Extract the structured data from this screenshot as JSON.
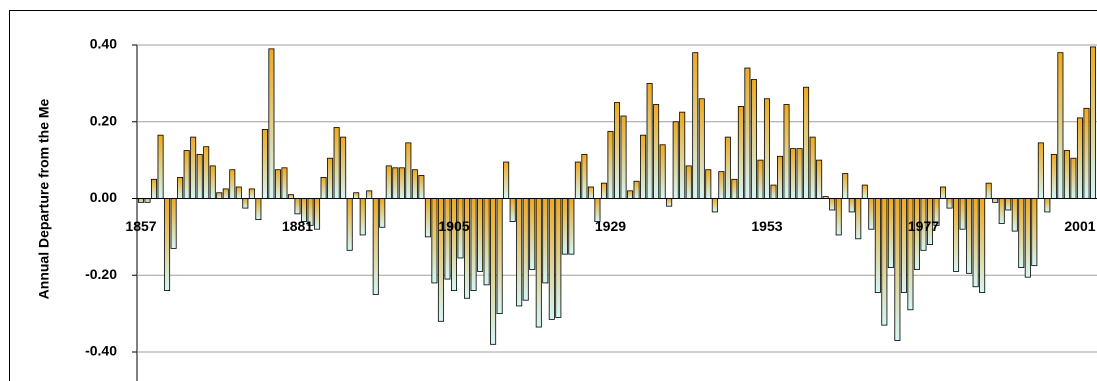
{
  "chart_data": {
    "type": "bar",
    "y_label": "Annual Departure from the Me",
    "categories": [
      "1857",
      null,
      null,
      null,
      null,
      null,
      null,
      null,
      null,
      null,
      null,
      null,
      null,
      null,
      null,
      null,
      null,
      null,
      null,
      null,
      null,
      null,
      null,
      null,
      "1881",
      null,
      null,
      null,
      null,
      null,
      null,
      null,
      null,
      null,
      null,
      null,
      null,
      null,
      null,
      null,
      null,
      null,
      null,
      null,
      null,
      null,
      null,
      null,
      "1905",
      null,
      null,
      null,
      null,
      null,
      null,
      null,
      null,
      null,
      null,
      null,
      null,
      null,
      null,
      null,
      null,
      null,
      null,
      null,
      null,
      null,
      null,
      null,
      "1929",
      null,
      null,
      null,
      null,
      null,
      null,
      null,
      null,
      null,
      null,
      null,
      null,
      null,
      null,
      null,
      null,
      null,
      null,
      null,
      null,
      null,
      null,
      null,
      "1953",
      null,
      null,
      null,
      null,
      null,
      null,
      null,
      null,
      null,
      null,
      null,
      null,
      null,
      null,
      null,
      null,
      null,
      null,
      null,
      null,
      null,
      null,
      null,
      "1977",
      null,
      null,
      null,
      null,
      null,
      null,
      null,
      null,
      null,
      null,
      null,
      null,
      null,
      null,
      null,
      null,
      null,
      null,
      null,
      null,
      null,
      null,
      null,
      "2001",
      null,
      null
    ],
    "values": [
      -0.01,
      -0.01,
      0.05,
      0.165,
      -0.24,
      -0.13,
      0.055,
      0.125,
      0.16,
      0.115,
      0.135,
      0.085,
      0.015,
      0.025,
      0.075,
      0.03,
      -0.025,
      0.025,
      -0.055,
      0.18,
      0.39,
      0.075,
      0.08,
      0.01,
      -0.04,
      -0.06,
      -0.07,
      -0.08,
      0.055,
      0.105,
      0.185,
      0.16,
      -0.135,
      0.015,
      -0.095,
      0.02,
      -0.25,
      -0.075,
      0.085,
      0.08,
      0.08,
      0.145,
      0.075,
      0.06,
      -0.1,
      -0.22,
      -0.32,
      -0.21,
      -0.24,
      -0.155,
      -0.26,
      -0.24,
      -0.19,
      -0.225,
      -0.38,
      -0.3,
      0.095,
      -0.06,
      -0.28,
      -0.265,
      -0.185,
      -0.335,
      -0.22,
      -0.315,
      -0.31,
      -0.145,
      -0.145,
      0.095,
      0.115,
      0.03,
      -0.06,
      0.04,
      0.175,
      0.25,
      0.215,
      0.02,
      0.045,
      0.165,
      0.3,
      0.245,
      0.14,
      -0.02,
      0.2,
      0.225,
      0.085,
      0.38,
      0.26,
      0.075,
      -0.035,
      0.07,
      0.16,
      0.05,
      0.24,
      0.34,
      0.31,
      0.1,
      0.26,
      0.035,
      0.11,
      0.245,
      0.13,
      0.13,
      0.29,
      0.16,
      0.1,
      0.005,
      -0.03,
      -0.095,
      0.065,
      -0.035,
      -0.105,
      0.035,
      -0.08,
      -0.245,
      -0.33,
      -0.18,
      -0.37,
      -0.245,
      -0.29,
      -0.185,
      -0.135,
      -0.12,
      -0.07,
      0.03,
      -0.025,
      -0.19,
      -0.08,
      -0.195,
      -0.23,
      -0.245,
      0.04,
      -0.01,
      -0.065,
      -0.03,
      -0.085,
      -0.18,
      -0.205,
      -0.175,
      0.145,
      -0.035,
      0.115,
      0.38,
      0.125,
      0.105,
      0.21,
      0.235,
      0.395
    ],
    "gradient": [
      "#efa91f",
      "#d2f7f7"
    ],
    "ylim": [
      -0.4,
      0.4
    ],
    "yticks": [
      {
        "value": 0.4,
        "label": "0.40"
      },
      {
        "value": 0.2,
        "label": "0.20"
      },
      {
        "value": 0,
        "label": "0.00"
      },
      {
        "value": -0.2,
        "label": "-0.20"
      },
      {
        "value": -0.4,
        "label": "-0.40"
      }
    ],
    "grid": true
  }
}
